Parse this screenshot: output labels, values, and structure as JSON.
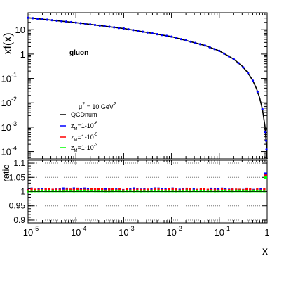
{
  "chart_data": [
    {
      "type": "line",
      "panel": "main",
      "ylabel": "xf(x)",
      "xscale": "log",
      "yscale": "log",
      "xlim": [
        1e-05,
        1
      ],
      "ylim": [
        5e-05,
        50
      ],
      "annotation": "gluon",
      "legend_title": "μ² = 10 GeV²",
      "legend_position": "lower-left",
      "series": [
        {
          "name": "QCDnum",
          "color": "#000000",
          "style": "line",
          "x": [
            1e-05,
            0.0001,
            0.001,
            0.01,
            0.05,
            0.1,
            0.2,
            0.3,
            0.4,
            0.5,
            0.6,
            0.7,
            0.8,
            0.9,
            0.95,
            0.98,
            1.0
          ],
          "y": [
            31,
            19.5,
            11.2,
            5.2,
            2.25,
            1.35,
            0.62,
            0.32,
            0.165,
            0.082,
            0.038,
            0.0155,
            0.0052,
            0.0011,
            0.00028,
            8e-05,
            5e-05
          ]
        },
        {
          "name": "z_M=1-10^-6",
          "color": "#0000ff",
          "style": "markers",
          "x": [],
          "y": []
        },
        {
          "name": "z_M=1-10^-5",
          "color": "#ff0000",
          "style": "markers",
          "x": [],
          "y": []
        },
        {
          "name": "z_M=1-10^-3",
          "color": "#00ff00",
          "style": "markers",
          "x": [],
          "y": []
        }
      ],
      "legend_labels": [
        {
          "main": "QCDnum"
        },
        {
          "main": "z",
          "sub": "M",
          "rest": "=1-10",
          "sup": "-6"
        },
        {
          "main": "z",
          "sub": "M",
          "rest": "=1-10",
          "sup": "-5"
        },
        {
          "main": "z",
          "sub": "M",
          "rest": "=1-10",
          "sup": "-3"
        }
      ]
    },
    {
      "type": "line",
      "panel": "ratio",
      "ylabel": "ratio",
      "xlabel": "x",
      "xscale": "log",
      "xlim": [
        1e-05,
        1
      ],
      "ylim": [
        0.89,
        1.11
      ],
      "yticks": [
        "0.9",
        "0.95",
        "1",
        "1.05",
        "1.1"
      ],
      "xticks": [
        {
          "base": "10",
          "exp": "-5"
        },
        {
          "base": "10",
          "exp": "-4"
        },
        {
          "base": "10",
          "exp": "-3"
        },
        {
          "base": "10",
          "exp": "-2"
        },
        {
          "base": "10",
          "exp": "-1"
        },
        {
          "base": "1",
          "exp": ""
        }
      ],
      "gridlines_y": [
        0.9,
        0.95,
        1.05,
        1.1
      ],
      "series": [
        {
          "name": "z_M=1-10^-6",
          "color": "#0000ff",
          "ratio_around": 1.008,
          "endpoint_ratio": 1.062
        },
        {
          "name": "z_M=1-10^-5",
          "color": "#ff0000",
          "ratio_around": 1.006,
          "endpoint_ratio": 1.055
        },
        {
          "name": "z_M=1-10^-3",
          "color": "#00ff00",
          "ratio_around": 1.002,
          "endpoint_ratio": 1.05
        }
      ]
    }
  ],
  "main_yticks": [
    {
      "base": "10",
      "exp": ""
    },
    {
      "base": "1",
      "exp": ""
    },
    {
      "base": "10",
      "exp": "-1"
    },
    {
      "base": "10",
      "exp": "-2"
    },
    {
      "base": "10",
      "exp": "-3"
    },
    {
      "base": "10",
      "exp": "-4"
    }
  ]
}
